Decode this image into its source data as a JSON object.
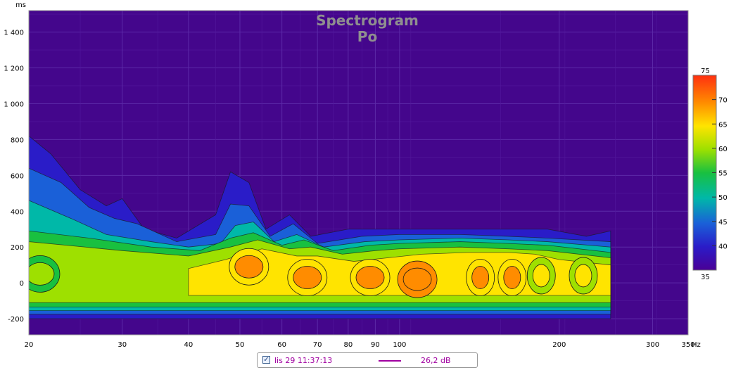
{
  "chart_data": {
    "type": "heatmap",
    "title": "Spectrogram",
    "subtitle": "Po",
    "xlabel_unit": "Hz",
    "ylabel_unit": "ms",
    "x_scale": "log",
    "xlim": [
      20,
      350
    ],
    "ylim": [
      -290,
      1520
    ],
    "x_ticks": [
      20,
      30,
      40,
      50,
      60,
      70,
      80,
      90,
      100,
      200,
      300,
      350
    ],
    "x_tick_labels": [
      "20",
      "30",
      "40",
      "50",
      "60",
      "70",
      "80",
      "90",
      "100",
      "200",
      "300",
      "350"
    ],
    "y_ticks": [
      1400,
      1200,
      1000,
      800,
      600,
      400,
      200,
      0,
      -200
    ],
    "y_tick_labels": [
      "1 400",
      "1 200",
      "1 000",
      "800",
      "600",
      "400",
      "200",
      "0",
      "-200"
    ],
    "colorbar": {
      "min": 35,
      "max": 75,
      "ticks": [
        70,
        65,
        60,
        55,
        50,
        45,
        40
      ],
      "top_label": "75",
      "bottom_label": "35"
    },
    "data_extent_hz": [
      20,
      250
    ],
    "peaks": [
      {
        "freq_hz": 21,
        "time_ms": 50,
        "level_db": 63
      },
      {
        "freq_hz": 52,
        "time_ms": 90,
        "level_db": 70
      },
      {
        "freq_hz": 67,
        "time_ms": 30,
        "level_db": 70
      },
      {
        "freq_hz": 88,
        "time_ms": 30,
        "level_db": 70
      },
      {
        "freq_hz": 108,
        "time_ms": 20,
        "level_db": 74
      },
      {
        "freq_hz": 142,
        "time_ms": 30,
        "level_db": 72
      },
      {
        "freq_hz": 163,
        "time_ms": 30,
        "level_db": 72
      },
      {
        "freq_hz": 185,
        "time_ms": 40,
        "level_db": 68
      },
      {
        "freq_hz": 222,
        "time_ms": 40,
        "level_db": 66
      }
    ],
    "grid": true
  },
  "legend": {
    "checked_mark": "✓",
    "measurement_name": "lis 29 11:37:13",
    "value": "26,2 dB",
    "color": "#a000a0"
  }
}
